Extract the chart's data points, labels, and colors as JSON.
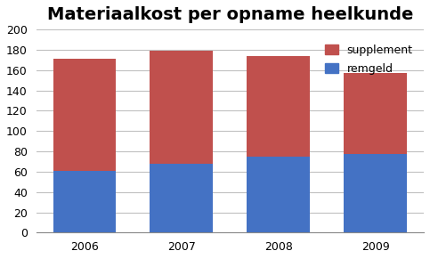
{
  "title": "Materiaalkost per opname heelkunde",
  "categories": [
    "2006",
    "2007",
    "2008",
    "2009"
  ],
  "remgeld": [
    61,
    68,
    75,
    77
  ],
  "supplement": [
    110,
    111,
    99,
    80
  ],
  "color_remgeld": "#4472C4",
  "color_supplement": "#C0504D",
  "ylim": [
    0,
    200
  ],
  "yticks": [
    0,
    20,
    40,
    60,
    80,
    100,
    120,
    140,
    160,
    180,
    200
  ],
  "legend_supplement": "supplement",
  "legend_remgeld": "remgeld",
  "title_fontsize": 14,
  "tick_fontsize": 9,
  "legend_fontsize": 9,
  "background_color": "#FFFFFF",
  "grid_color": "#C0C0C0",
  "bar_width": 0.65
}
